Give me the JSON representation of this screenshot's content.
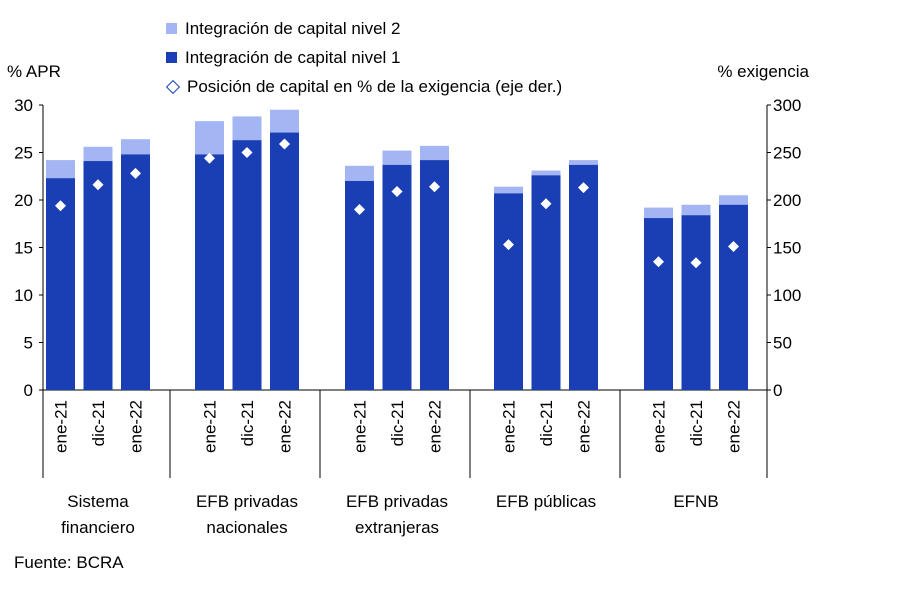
{
  "chart_data": {
    "type": "bar",
    "stacked": true,
    "legend": [
      {
        "name": "Integración de capital nivel 2",
        "color": "#a3b5f2",
        "marker": "square"
      },
      {
        "name": "Integración de capital nivel 1",
        "color": "#1a3fb4",
        "marker": "square"
      },
      {
        "name": "Posición de capital en % de la exigencia (eje der.)",
        "color": "#1a3fb4",
        "marker": "diamond"
      }
    ],
    "y_left": {
      "label": "% APR",
      "ylim": [
        0,
        30
      ],
      "ticks": [
        "30",
        "25",
        "20",
        "15",
        "10",
        "5",
        "0"
      ]
    },
    "y_right": {
      "label": "% exigencia",
      "ylim": [
        0,
        300
      ],
      "ticks": [
        "300",
        "250",
        "200",
        "150",
        "100",
        "50",
        "0"
      ]
    },
    "groups": [
      {
        "label_lines": [
          "Sistema",
          "financiero"
        ],
        "bars": [
          {
            "period": "ene-21",
            "nivel1": 22.3,
            "nivel2": 1.9,
            "posicion": 194
          },
          {
            "period": "dic-21",
            "nivel1": 24.1,
            "nivel2": 1.5,
            "posicion": 216
          },
          {
            "period": "ene-22",
            "nivel1": 24.8,
            "nivel2": 1.6,
            "posicion": 228
          }
        ]
      },
      {
        "label_lines": [
          "EFB privadas",
          "nacionales"
        ],
        "bars": [
          {
            "period": "ene-21",
            "nivel1": 24.8,
            "nivel2": 3.5,
            "posicion": 244
          },
          {
            "period": "dic-21",
            "nivel1": 26.3,
            "nivel2": 2.5,
            "posicion": 250
          },
          {
            "period": "ene-22",
            "nivel1": 27.1,
            "nivel2": 2.4,
            "posicion": 259
          }
        ]
      },
      {
        "label_lines": [
          "EFB privadas",
          "extranjeras"
        ],
        "bars": [
          {
            "period": "ene-21",
            "nivel1": 22.0,
            "nivel2": 1.6,
            "posicion": 190
          },
          {
            "period": "dic-21",
            "nivel1": 23.7,
            "nivel2": 1.5,
            "posicion": 209
          },
          {
            "period": "ene-22",
            "nivel1": 24.2,
            "nivel2": 1.5,
            "posicion": 214
          }
        ]
      },
      {
        "label_lines": [
          "EFB públicas"
        ],
        "bars": [
          {
            "period": "ene-21",
            "nivel1": 20.7,
            "nivel2": 0.7,
            "posicion": 153
          },
          {
            "period": "dic-21",
            "nivel1": 22.6,
            "nivel2": 0.5,
            "posicion": 196
          },
          {
            "period": "ene-22",
            "nivel1": 23.7,
            "nivel2": 0.5,
            "posicion": 213
          }
        ]
      },
      {
        "label_lines": [
          "EFNB"
        ],
        "bars": [
          {
            "period": "ene-21",
            "nivel1": 18.1,
            "nivel2": 1.1,
            "posicion": 135
          },
          {
            "period": "dic-21",
            "nivel1": 18.4,
            "nivel2": 1.1,
            "posicion": 134
          },
          {
            "period": "ene-22",
            "nivel1": 19.5,
            "nivel2": 1.0,
            "posicion": 151
          }
        ]
      }
    ]
  },
  "source": "Fuente: BCRA"
}
